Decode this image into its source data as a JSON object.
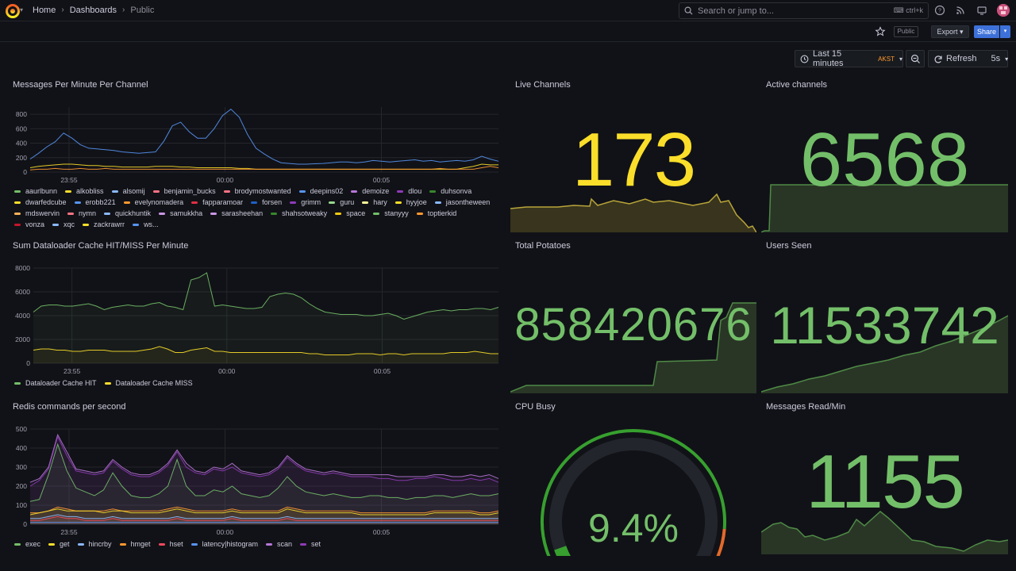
{
  "topbar": {
    "breadcrumbs": [
      "Home",
      "Dashboards",
      "Public"
    ],
    "search_placeholder": "Search or jump to...",
    "search_shortcut": "ctrl+k"
  },
  "toolbar": {
    "public_label": "Public",
    "export_label": "Export",
    "share_label": "Share",
    "time_range": "Last 15 minutes",
    "timezone": "AKST",
    "refresh_label": "Refresh",
    "refresh_interval": "5s"
  },
  "panels": {
    "messages": {
      "title": "Messages Per Minute Per Channel",
      "legend": [
        "aaurlbunn",
        "alkobliss",
        "alsomij",
        "benjamin_bucks",
        "brodymostwanted",
        "deepins02",
        "demoize",
        "dlou",
        "duhsonva",
        "dwarfedcube",
        "erobb221",
        "evelynomadera",
        "fapparamoar",
        "forsen",
        "grimm",
        "guru",
        "hary",
        "hyyjoe",
        "jasontheween",
        "mdswervin",
        "nymn",
        "quickhuntik",
        "samukkha",
        "sarasheehan",
        "shahsotweaky",
        "space",
        "stanyyy",
        "toptierkid",
        "vonza",
        "xqc",
        "zackrawrr",
        "ws..."
      ]
    },
    "dataloader": {
      "title": "Sum Dataloader Cache HIT/MISS Per Minute",
      "legend": [
        "Dataloader Cache HIT",
        "Dataloader Cache MISS"
      ]
    },
    "redis": {
      "title": "Redis commands per second",
      "legend": [
        "exec",
        "get",
        "hincrby",
        "hmget",
        "hset",
        "latency|histogram",
        "scan",
        "set"
      ]
    },
    "live": {
      "title": "Live Channels",
      "value": "173"
    },
    "active": {
      "title": "Active channels",
      "value": "6568"
    },
    "potatoes": {
      "title": "Total Potatoes",
      "value": "858420676"
    },
    "users": {
      "title": "Users Seen",
      "value": "11533742"
    },
    "cpu": {
      "title": "CPU Busy",
      "value": "9.4%",
      "percent": 9.4
    },
    "readmin": {
      "title": "Messages Read/Min",
      "value": "1155"
    }
  },
  "chart_data": [
    {
      "type": "line",
      "title": "Messages Per Minute Per Channel",
      "ylim": [
        0,
        900
      ],
      "yticks": [
        0,
        200,
        400,
        600,
        800
      ],
      "xticks": [
        "23:55",
        "00:00",
        "00:05"
      ],
      "series": [
        {
          "name": "evelynomadera",
          "values": [
            180,
            260,
            350,
            420,
            540,
            470,
            380,
            330,
            320,
            310,
            300,
            280,
            270,
            260,
            270,
            280,
            430,
            640,
            690,
            560,
            470,
            470,
            600,
            780,
            870,
            760,
            520,
            330,
            250,
            180,
            130,
            120,
            110,
            110,
            115,
            120,
            130,
            140,
            140,
            130,
            140,
            160,
            150,
            140,
            150,
            160,
            170,
            150,
            160,
            140,
            150,
            160,
            150,
            170,
            220,
            180,
            150
          ]
        },
        {
          "name": "aaurlbunn",
          "values": [
            60,
            80,
            90,
            100,
            110,
            110,
            100,
            90,
            90,
            80,
            80,
            70,
            70,
            70,
            70,
            80,
            80,
            80,
            70,
            70,
            60,
            60,
            60,
            60,
            60,
            50,
            50,
            40,
            40,
            40,
            40,
            40,
            40,
            40,
            40,
            40,
            40,
            40,
            40,
            40,
            40,
            40,
            40,
            40,
            40,
            40,
            40,
            40,
            40,
            40,
            40,
            40,
            60,
            80,
            110,
            100,
            100
          ]
        },
        {
          "name": "alkobliss",
          "values": [
            30,
            40,
            40,
            50,
            40,
            40,
            50,
            40,
            40,
            50,
            40,
            40,
            40,
            40,
            40,
            40,
            40,
            40,
            40,
            40,
            40,
            40,
            40,
            40,
            40,
            40,
            40,
            40,
            40,
            40,
            40,
            40,
            40,
            40,
            40,
            40,
            40,
            40,
            40,
            40,
            40,
            40,
            40,
            40,
            40,
            40,
            40,
            40,
            40,
            50,
            40,
            40,
            40,
            40,
            60,
            80,
            60
          ]
        }
      ]
    },
    {
      "type": "area",
      "title": "Sum Dataloader Cache HIT/MISS Per Minute",
      "ylim": [
        0,
        8000
      ],
      "yticks": [
        0,
        2000,
        4000,
        6000,
        8000
      ],
      "xticks": [
        "23:55",
        "00:00",
        "00:05"
      ],
      "series": [
        {
          "name": "Dataloader Cache HIT",
          "values": [
            4300,
            4800,
            4900,
            4900,
            4800,
            4800,
            4900,
            5000,
            4800,
            4500,
            4700,
            4800,
            4900,
            4800,
            4800,
            5000,
            5100,
            4800,
            4700,
            4500,
            7000,
            7200,
            7600,
            4800,
            4900,
            4800,
            4700,
            4600,
            4600,
            4700,
            5600,
            5800,
            5900,
            5800,
            5500,
            5000,
            4600,
            4300,
            4200,
            4100,
            4100,
            4100,
            4000,
            4000,
            4100,
            4200,
            4000,
            3700,
            3900,
            4100,
            4300,
            4400,
            4500,
            4400,
            4500,
            4500,
            4600,
            4600,
            4500,
            4700
          ]
        },
        {
          "name": "Dataloader Cache MISS",
          "values": [
            1100,
            1200,
            1200,
            1100,
            1100,
            1000,
            1000,
            1100,
            1100,
            1100,
            1000,
            1000,
            1000,
            1000,
            1100,
            1200,
            1400,
            1200,
            900,
            900,
            1100,
            1200,
            1300,
            1000,
            1000,
            900,
            900,
            900,
            900,
            900,
            900,
            900,
            900,
            900,
            900,
            800,
            800,
            700,
            700,
            700,
            700,
            800,
            800,
            800,
            700,
            800,
            800,
            700,
            800,
            800,
            800,
            800,
            800,
            900,
            900,
            900,
            1000,
            900,
            800,
            800
          ]
        }
      ]
    },
    {
      "type": "area",
      "title": "Redis commands per second",
      "ylim": [
        0,
        500
      ],
      "yticks": [
        0,
        100,
        200,
        300,
        400,
        500
      ],
      "xticks": [
        "23:55",
        "00:00",
        "00:05"
      ],
      "series": [
        {
          "name": "exec",
          "values": [
            120,
            130,
            260,
            420,
            280,
            190,
            170,
            150,
            180,
            270,
            200,
            150,
            140,
            140,
            160,
            200,
            340,
            200,
            150,
            150,
            180,
            170,
            200,
            160,
            150,
            140,
            150,
            190,
            250,
            200,
            170,
            160,
            150,
            160,
            150,
            140,
            140,
            150,
            150,
            140,
            140,
            130,
            140,
            140,
            150,
            150,
            140,
            150,
            160,
            150,
            150,
            160
          ]
        },
        {
          "name": "get",
          "values": [
            50,
            60,
            70,
            80,
            70,
            70,
            70,
            70,
            60,
            70,
            70,
            60,
            60,
            60,
            60,
            70,
            80,
            70,
            60,
            60,
            60,
            60,
            70,
            60,
            60,
            60,
            60,
            60,
            80,
            70,
            60,
            60,
            60,
            60,
            60,
            60,
            50,
            50,
            50,
            50,
            50,
            50,
            50,
            50,
            60,
            60,
            60,
            60,
            60,
            50,
            50,
            60
          ]
        },
        {
          "name": "hincrby",
          "values": [
            30,
            30,
            40,
            50,
            40,
            40,
            30,
            30,
            30,
            40,
            30,
            30,
            30,
            30,
            30,
            30,
            40,
            30,
            30,
            30,
            30,
            30,
            40,
            30,
            30,
            30,
            30,
            30,
            40,
            30,
            30,
            30,
            30,
            30,
            30,
            30,
            30,
            30,
            30,
            30,
            30,
            30,
            30,
            30,
            30,
            30,
            30,
            30,
            30,
            30,
            30,
            30
          ]
        },
        {
          "name": "hmget",
          "values": [
            60,
            60,
            70,
            90,
            80,
            70,
            70,
            70,
            70,
            80,
            70,
            70,
            70,
            70,
            70,
            80,
            90,
            80,
            70,
            70,
            70,
            70,
            80,
            70,
            70,
            70,
            70,
            70,
            90,
            80,
            70,
            70,
            70,
            70,
            70,
            70,
            60,
            60,
            60,
            60,
            60,
            60,
            60,
            60,
            70,
            70,
            70,
            70,
            70,
            60,
            60,
            70
          ]
        },
        {
          "name": "hset",
          "values": [
            20,
            20,
            30,
            40,
            30,
            30,
            20,
            20,
            20,
            30,
            20,
            20,
            20,
            20,
            20,
            20,
            30,
            20,
            20,
            20,
            20,
            20,
            30,
            20,
            20,
            20,
            20,
            20,
            30,
            20,
            20,
            20,
            20,
            20,
            20,
            20,
            20,
            20,
            20,
            20,
            20,
            20,
            20,
            20,
            20,
            20,
            20,
            20,
            20,
            20,
            20,
            20
          ]
        },
        {
          "name": "latency|histogram",
          "values": [
            10,
            10,
            10,
            10,
            10,
            10,
            10,
            10,
            10,
            10,
            10,
            10,
            10,
            10,
            10,
            10,
            10,
            10,
            10,
            10,
            10,
            10,
            10,
            10,
            10,
            10,
            10,
            10,
            10,
            10,
            10,
            10,
            10,
            10,
            10,
            10,
            10,
            10,
            10,
            10,
            10,
            10,
            10,
            10,
            10,
            10,
            10,
            10,
            10,
            10,
            10,
            10
          ]
        },
        {
          "name": "scan",
          "values": [
            220,
            240,
            300,
            470,
            380,
            290,
            280,
            270,
            280,
            340,
            300,
            270,
            260,
            260,
            280,
            320,
            390,
            320,
            280,
            270,
            300,
            290,
            320,
            280,
            270,
            260,
            270,
            300,
            360,
            320,
            290,
            280,
            270,
            280,
            270,
            260,
            260,
            260,
            260,
            260,
            250,
            250,
            250,
            250,
            260,
            260,
            250,
            250,
            260,
            250,
            260,
            240
          ]
        },
        {
          "name": "set",
          "values": [
            200,
            230,
            290,
            460,
            360,
            280,
            270,
            260,
            270,
            330,
            290,
            260,
            250,
            250,
            270,
            310,
            380,
            300,
            270,
            260,
            290,
            280,
            300,
            270,
            260,
            250,
            260,
            290,
            350,
            310,
            280,
            270,
            260,
            270,
            260,
            250,
            250,
            250,
            240,
            240,
            230,
            230,
            240,
            240,
            250,
            240,
            230,
            230,
            240,
            230,
            240,
            220
          ]
        }
      ]
    }
  ],
  "colors": {
    "green": "#73bf69",
    "yellow": "#fade2a",
    "orange": "#ff9830",
    "red": "#f2495c",
    "blue": "#5794f2",
    "purple": "#b877d9"
  }
}
